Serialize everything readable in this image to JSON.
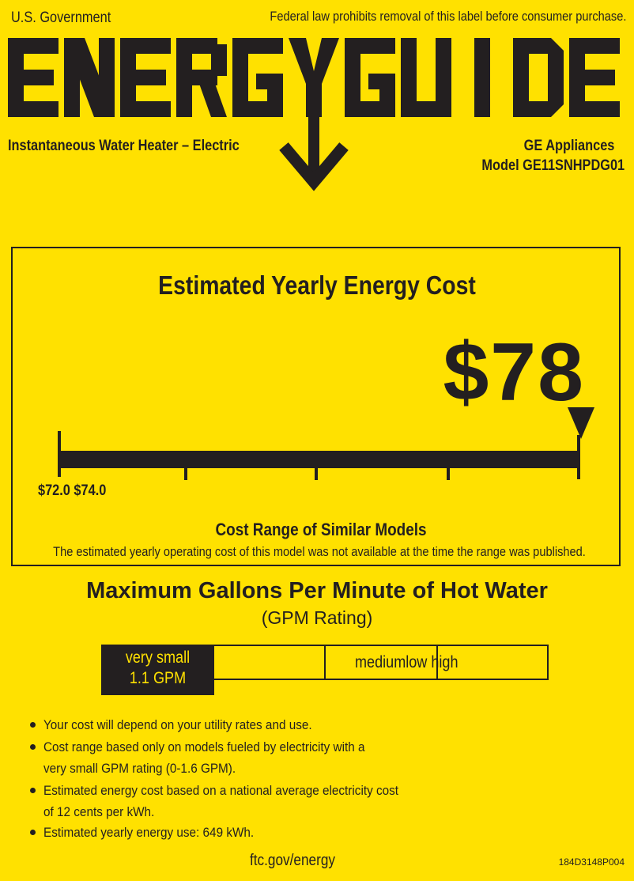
{
  "header": {
    "government": "U.S. Government",
    "notice": "Federal law prohibits removal of this label before consumer purchase.",
    "logo_text": "ENERGYGUIDE",
    "product_type": "Instantaneous Water Heater – Electric",
    "manufacturer": "GE Appliances",
    "model": "Model GE11SNHPDG01"
  },
  "cost": {
    "title": "Estimated Yearly Energy Cost",
    "value": "$78",
    "range_labels": "$72.0 $74.0",
    "range_title": "Cost Range of Similar Models",
    "range_note": "The estimated yearly operating cost of this model was not available at the time the range was published."
  },
  "gpm": {
    "title": "Maximum Gallons Per Minute of Hot Water",
    "subtitle": "(GPM Rating)",
    "selected_label": "very small",
    "selected_value": "1.1 GPM",
    "other_labels": "mediumlow high"
  },
  "bullets": [
    [
      "Your cost will depend on your utility rates and use."
    ],
    [
      "Cost range based only on models fueled by electricity with a",
      "very small GPM rating (0-1.6 GPM)."
    ],
    [
      "Estimated energy cost based on a national average electricity cost",
      "of 12 cents per kWh."
    ],
    [
      "Estimated yearly energy use: 649 kWh."
    ]
  ],
  "footer": {
    "link": "ftc.gov/energy",
    "code": "184D3148P004"
  },
  "colors": {
    "background": "#FFE100",
    "ink": "#231F20"
  }
}
